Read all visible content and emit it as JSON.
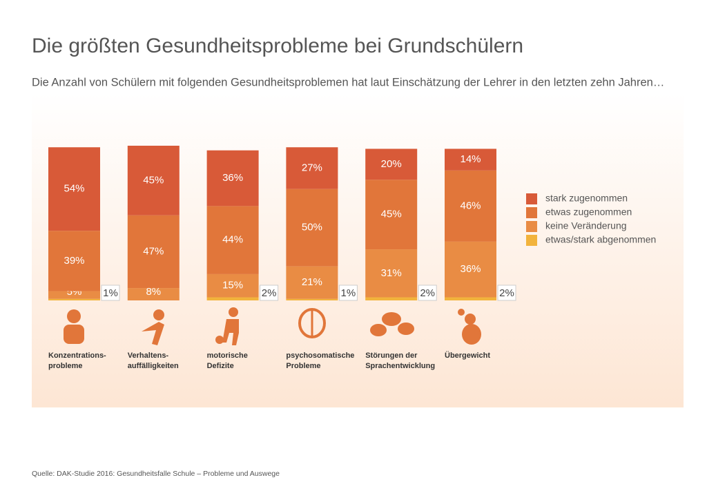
{
  "chart_data": {
    "type": "bar",
    "stacked": true,
    "title": "Die größten Gesundheitsprobleme bei Grundschülern",
    "subtitle": "Die Anzahl von Schülern mit folgenden Gesundheitsproblemen hat laut Einschätzung der Lehrer in den letzten zehn Jahren…",
    "source": "Quelle: DAK-Studie 2016: Gesundheitsfalle Schule – Probleme und Auswege",
    "categories": [
      "Konzentrations-\nprobleme",
      "Verhaltens-\nauffälligkeiten",
      "motorische\nDefizite",
      "psychosomatische\nProbleme",
      "Störungen der\nSprachentwicklung",
      "Übergewicht"
    ],
    "ylim": [
      0,
      100
    ],
    "series": [
      {
        "name": "stark zugenommen",
        "color": "#d85a38",
        "values": [
          54,
          45,
          36,
          27,
          20,
          14
        ],
        "value_labels": [
          "54%",
          "45%",
          "36%",
          "27%",
          "20%",
          "14%"
        ]
      },
      {
        "name": "etwas zugenommen",
        "color": "#e1763a",
        "values": [
          39,
          47,
          44,
          50,
          45,
          46
        ],
        "value_labels": [
          "39%",
          "47%",
          "44%",
          "50%",
          "45%",
          "46%"
        ]
      },
      {
        "name": "keine Veränderung",
        "color": "#e98c44",
        "values": [
          5,
          8,
          15,
          21,
          31,
          36
        ],
        "value_labels": [
          "5%",
          "8%",
          "15%",
          "21%",
          "31%",
          "36%"
        ]
      },
      {
        "name": "etwas/stark abgenommen",
        "color": "#f2b33c",
        "values": [
          1,
          null,
          2,
          1,
          2,
          2
        ],
        "value_labels": [
          "1%",
          null,
          "2%",
          "1%",
          "2%",
          "2%"
        ]
      }
    ]
  }
}
